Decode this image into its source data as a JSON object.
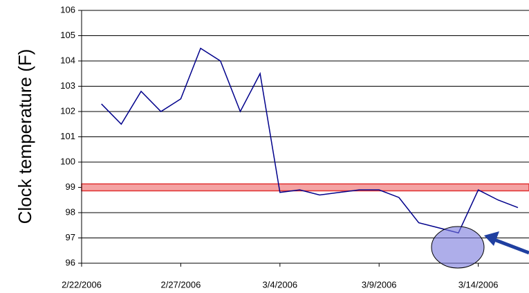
{
  "chart_data": {
    "type": "line",
    "y_label": "Clock temperature (F)",
    "x": [
      "2006-02-23",
      "2006-02-24",
      "2006-02-25",
      "2006-02-26",
      "2006-02-27",
      "2006-02-28",
      "2006-03-01",
      "2006-03-02",
      "2006-03-03",
      "2006-03-04",
      "2006-03-05",
      "2006-03-06",
      "2006-03-07",
      "2006-03-08",
      "2006-03-09",
      "2006-03-10",
      "2006-03-11",
      "2006-03-12",
      "2006-03-13",
      "2006-03-14",
      "2006-03-15",
      "2006-03-16"
    ],
    "series": [
      {
        "color": "#00008b",
        "values": [
          102.3,
          101.5,
          102.8,
          102.0,
          102.5,
          104.5,
          104.0,
          102.0,
          103.5,
          98.8,
          98.9,
          98.7,
          98.8,
          98.9,
          98.9,
          98.6,
          97.6,
          97.4,
          97.2,
          98.9,
          98.5,
          98.2
        ]
      }
    ],
    "xlim": [
      "2006-02-22",
      "2006-03-16"
    ],
    "xticks": [
      {
        "value": "2006-02-22",
        "label": "2/22/2006"
      },
      {
        "value": "2006-02-27",
        "label": "2/27/2006"
      },
      {
        "value": "2006-03-04",
        "label": "3/4/2006"
      },
      {
        "value": "2006-03-09",
        "label": "3/9/2006"
      },
      {
        "value": "2006-03-14",
        "label": "3/14/2006"
      }
    ],
    "ylim": [
      96,
      106
    ],
    "yticks": [
      96,
      97,
      98,
      99,
      100,
      101,
      102,
      103,
      104,
      105,
      106
    ],
    "grid": true,
    "threshold": 99
  }
}
